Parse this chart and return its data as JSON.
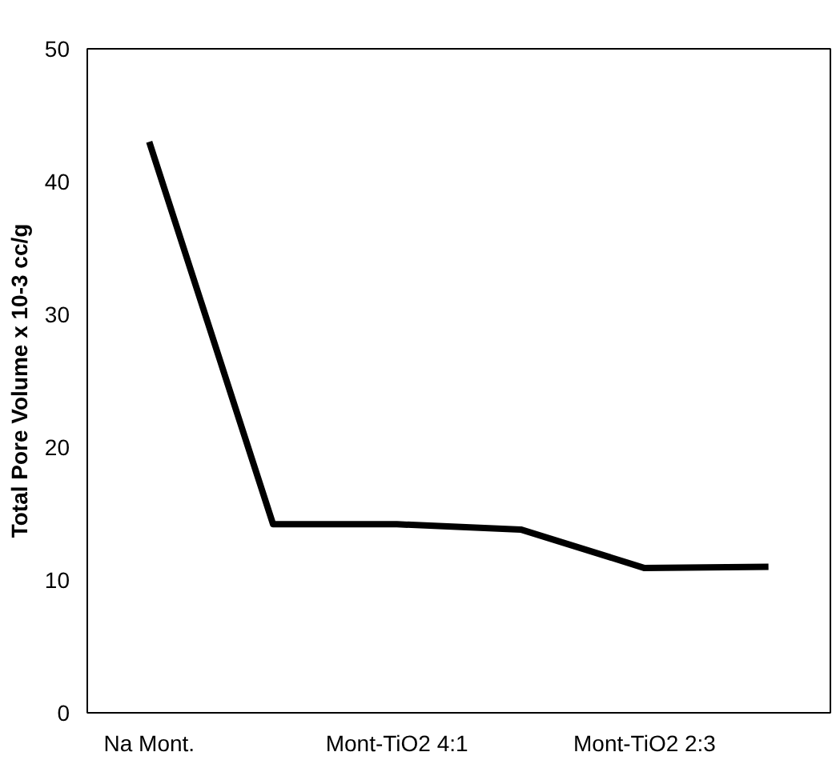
{
  "chart_data": {
    "type": "line",
    "ylabel": "Total Pore Volume x 10-3 cc/g",
    "categories": [
      "Na Mont.",
      null,
      "Mont-TiO2 4:1",
      null,
      "Mont-TiO2 2:3",
      null
    ],
    "series": [
      {
        "color": "#000000",
        "values": [
          43,
          14.2,
          14.2,
          13.8,
          10.9,
          11.0
        ]
      }
    ],
    "ylim": [
      0,
      50
    ],
    "yticks": [
      0,
      10,
      20,
      30,
      40,
      50
    ],
    "grid": false,
    "marker": "none",
    "line_style": "solid"
  }
}
